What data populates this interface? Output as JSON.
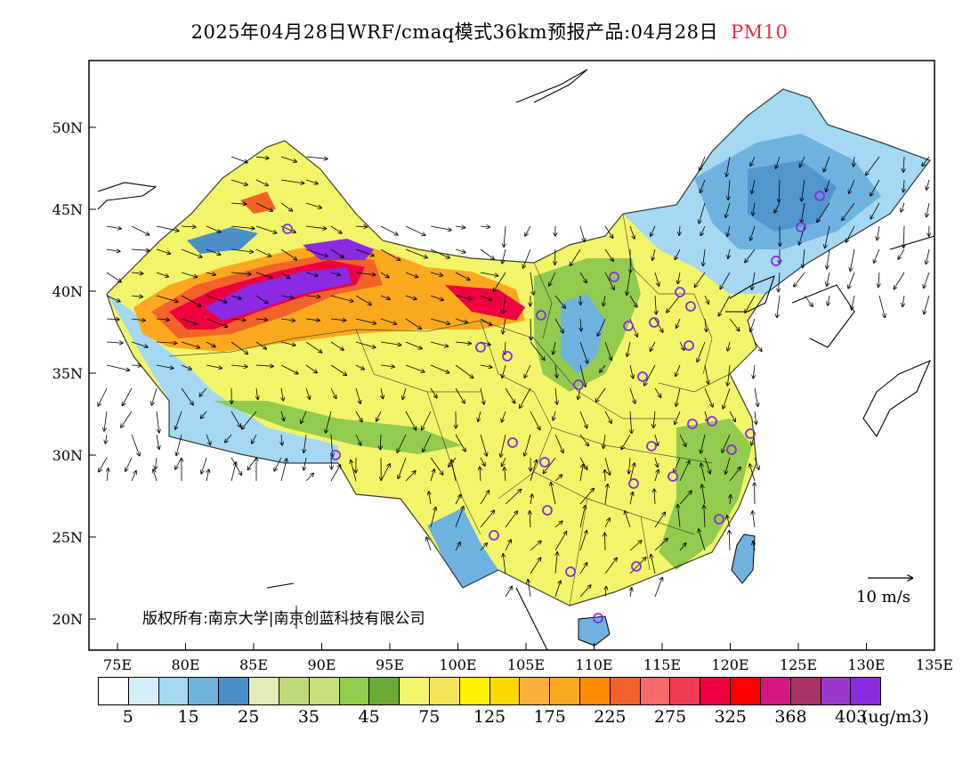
{
  "title": {
    "text": "2025年04月28日WRF/cmaq模式36km预报产品:04月28日",
    "pollutant": "PM10"
  },
  "map": {
    "lat_labels": [
      "50N",
      "45N",
      "40N",
      "35N",
      "30N",
      "25N",
      "20N"
    ],
    "lon_labels": [
      "75E",
      "80E",
      "85E",
      "90E",
      "95E",
      "100E",
      "105E",
      "110E",
      "115E",
      "120E",
      "125E",
      "130E",
      "135E"
    ],
    "wind_scale_label": "10 m/s",
    "copyright": "版权所有:南京大学|南京创蓝科技有限公司"
  },
  "legend": {
    "colors": [
      "#ffffff",
      "#d6eefa",
      "#a4d8f3",
      "#6fb2e0",
      "#4a8fc8",
      "#e2ecb8",
      "#bed97a",
      "#c6e07c",
      "#93cb4e",
      "#6aaa34",
      "#f2f56a",
      "#f5e45a",
      "#fff200",
      "#fdd900",
      "#fbb03b",
      "#fba81e",
      "#fd8a00",
      "#f3622a",
      "#fb6a6a",
      "#f23a54",
      "#ee0040",
      "#ff0000",
      "#d41683",
      "#a63266",
      "#9b38cc",
      "#8a2be2"
    ],
    "labels": [
      "5",
      "15",
      "25",
      "35",
      "45",
      "75",
      "125",
      "175",
      "225",
      "275",
      "325",
      "368",
      "403"
    ],
    "unit": "(ug/m3)"
  },
  "colors": {
    "title_pollutant": "#e0303a",
    "station_marker": "#8a2be2"
  }
}
